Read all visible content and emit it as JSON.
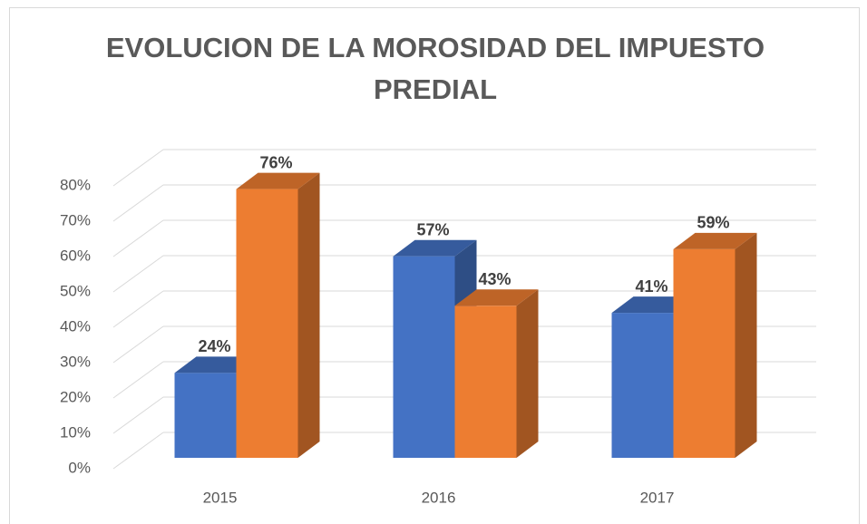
{
  "chart_data": {
    "type": "bar3d",
    "title": "EVOLUCION DE LA MOROSIDAD DEL IMPUESTO PREDIAL",
    "categories": [
      "2015",
      "2016",
      "2017"
    ],
    "series": [
      {
        "color": "#4472c4",
        "values": [
          24,
          57,
          41
        ],
        "value_labels": [
          "24%",
          "57%",
          "41%"
        ]
      },
      {
        "color": "#ed7d31",
        "values": [
          76,
          43,
          59
        ],
        "value_labels": [
          "76%",
          "43%",
          "59%"
        ]
      }
    ],
    "ylim": [
      0,
      80
    ],
    "yticks": [
      {
        "value": 0,
        "label": "0%"
      },
      {
        "value": 10,
        "label": "10%"
      },
      {
        "value": 20,
        "label": "20%"
      },
      {
        "value": 30,
        "label": "30%"
      },
      {
        "value": 40,
        "label": "40%"
      },
      {
        "value": 50,
        "label": "50%"
      },
      {
        "value": 60,
        "label": "60%"
      },
      {
        "value": 70,
        "label": "70%"
      },
      {
        "value": 80,
        "label": "80%"
      }
    ],
    "grid": true
  }
}
